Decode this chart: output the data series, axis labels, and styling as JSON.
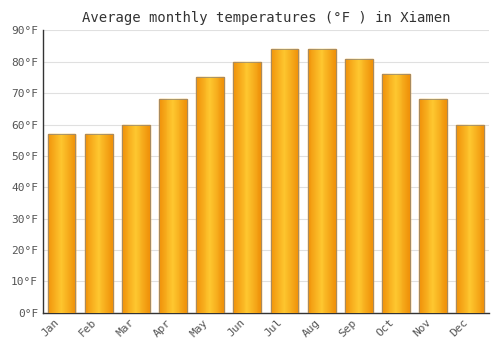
{
  "title": "Average monthly temperatures (°F ) in Xiamen",
  "months": [
    "Jan",
    "Feb",
    "Mar",
    "Apr",
    "May",
    "Jun",
    "Jul",
    "Aug",
    "Sep",
    "Oct",
    "Nov",
    "Dec"
  ],
  "values": [
    57,
    57,
    60,
    68,
    75,
    80,
    84,
    84,
    81,
    76,
    68,
    60
  ],
  "bar_color_center": "#FFC830",
  "bar_color_edge": "#F0920A",
  "bar_outline_color": "#888888",
  "background_color": "#FFFFFF",
  "plot_bg_color": "#FFFFFF",
  "grid_color": "#E0E0E0",
  "ylim": [
    0,
    90
  ],
  "ytick_step": 10,
  "title_fontsize": 10,
  "tick_fontsize": 8,
  "font_family": "monospace",
  "tick_color": "#555555",
  "title_color": "#333333"
}
